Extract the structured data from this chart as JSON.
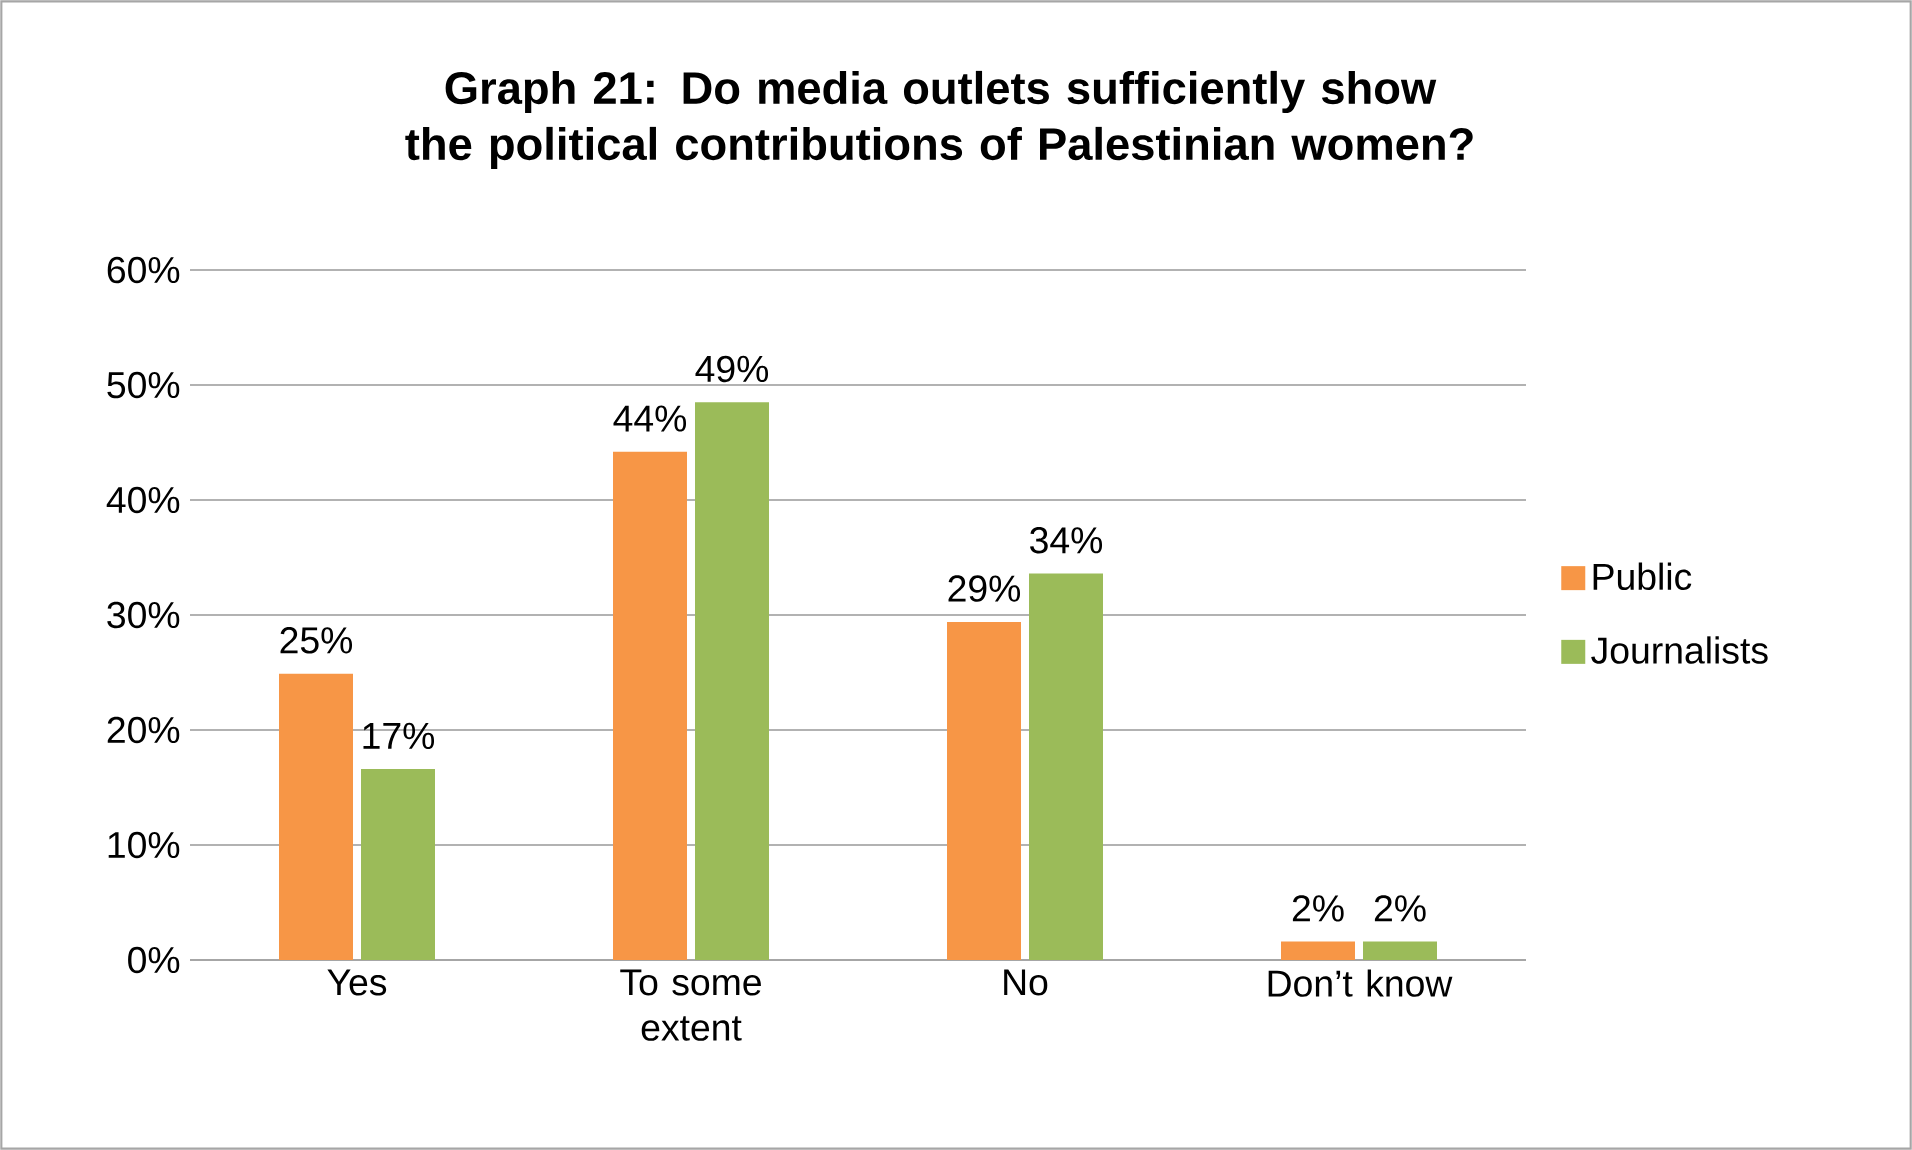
{
  "chart_data": {
    "type": "bar",
    "title": "Graph 21: Do media outlets sufficiently show the political contributions of Palestinian women?",
    "categories": [
      "Yes",
      "To some extent",
      "No",
      "Don’t know"
    ],
    "series": [
      {
        "name": "Public",
        "color": "#f79646",
        "values": [
          24.9,
          44.2,
          29.4,
          1.6
        ],
        "value_labels": [
          "25%",
          "44%",
          "29%",
          "2%"
        ]
      },
      {
        "name": "Journalists",
        "color": "#9bbb59",
        "values": [
          16.6,
          48.5,
          33.6,
          1.6
        ],
        "value_labels": [
          "17%",
          "49%",
          "34%",
          "2%"
        ]
      }
    ],
    "ylim": [
      0,
      60
    ],
    "yticks": [
      {
        "value": 0,
        "label": "0%"
      },
      {
        "value": 10,
        "label": "10%"
      },
      {
        "value": 20,
        "label": "20%"
      },
      {
        "value": 30,
        "label": "30%"
      },
      {
        "value": 40,
        "label": "40%"
      },
      {
        "value": 50,
        "label": "50%"
      },
      {
        "value": 60,
        "label": "60%"
      }
    ],
    "grid": "y",
    "legend": "right"
  }
}
